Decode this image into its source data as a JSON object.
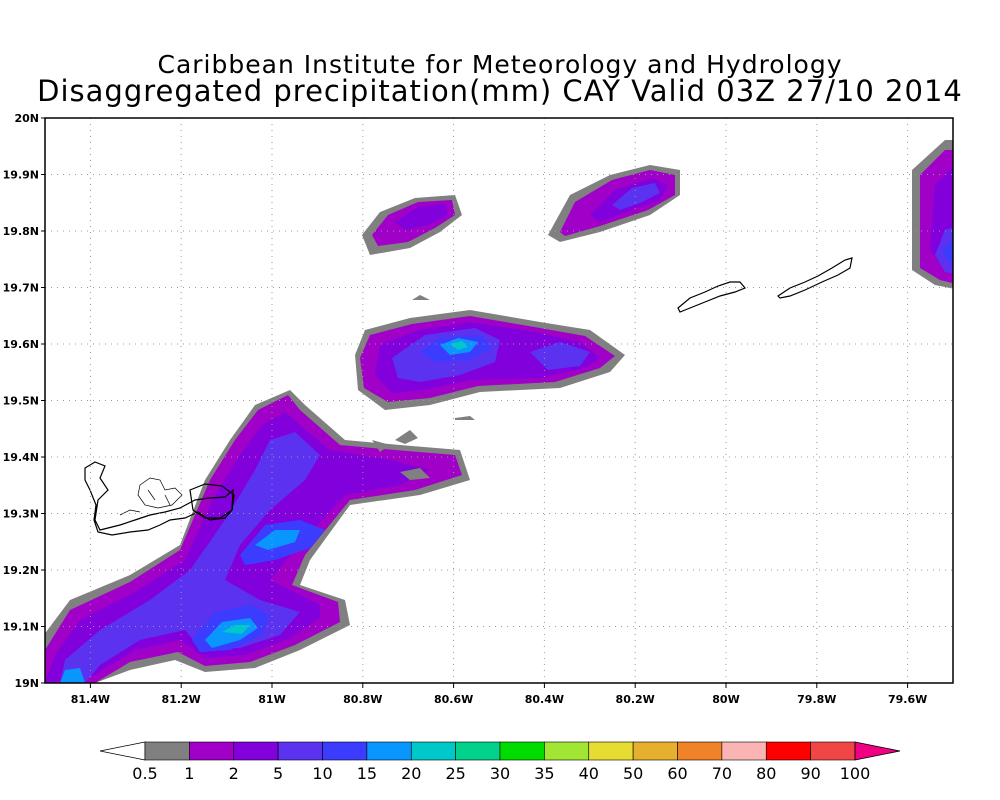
{
  "title": {
    "line1": "Caribbean Institute for Meteorology and Hydrology",
    "line2": "Disaggregated precipitation(mm) CAY Valid 03Z 27/10 2014"
  },
  "map": {
    "lon_range": [
      -81.5,
      -79.5
    ],
    "lat_range": [
      19.0,
      20.0
    ],
    "x_ticks": [
      {
        "value": -81.4,
        "label": "81.4W"
      },
      {
        "value": -81.2,
        "label": "81.2W"
      },
      {
        "value": -81.0,
        "label": "81W"
      },
      {
        "value": -80.8,
        "label": "80.8W"
      },
      {
        "value": -80.6,
        "label": "80.6W"
      },
      {
        "value": -80.4,
        "label": "80.4W"
      },
      {
        "value": -80.2,
        "label": "80.2W"
      },
      {
        "value": -80.0,
        "label": "80W"
      },
      {
        "value": -79.8,
        "label": "79.8W"
      },
      {
        "value": -79.6,
        "label": "79.6W"
      }
    ],
    "y_ticks": [
      {
        "value": 19.0,
        "label": "19N"
      },
      {
        "value": 19.1,
        "label": "19.1N"
      },
      {
        "value": 19.2,
        "label": "19.2N"
      },
      {
        "value": 19.3,
        "label": "19.3N"
      },
      {
        "value": 19.4,
        "label": "19.4N"
      },
      {
        "value": 19.5,
        "label": "19.5N"
      },
      {
        "value": 19.6,
        "label": "19.6N"
      },
      {
        "value": 19.7,
        "label": "19.7N"
      },
      {
        "value": 19.8,
        "label": "19.8N"
      },
      {
        "value": 19.9,
        "label": "19.9N"
      },
      {
        "value": 20.0,
        "label": "20N"
      }
    ],
    "grid": "dotted"
  },
  "colorbar": {
    "labels": [
      "0.5",
      "1",
      "2",
      "5",
      "10",
      "15",
      "20",
      "25",
      "30",
      "35",
      "40",
      "50",
      "60",
      "70",
      "80",
      "90",
      "100"
    ],
    "colors": [
      "#808080",
      "#a000c8",
      "#8200dc",
      "#5a32f0",
      "#3c3cff",
      "#0a96ff",
      "#00c8c8",
      "#00d28c",
      "#00dc00",
      "#a0e632",
      "#e6dc32",
      "#e6af2d",
      "#f08228",
      "#fab4b4",
      "#ff0000",
      "#f04646",
      "#f00082"
    ]
  },
  "colors": {
    "level_gray": "#808080",
    "level_1": "#a000c8",
    "level_2": "#8200dc",
    "level_5": "#5a32f0",
    "level_10": "#3c3cff",
    "level_15": "#0a96ff",
    "level_20": "#00c8c8"
  }
}
